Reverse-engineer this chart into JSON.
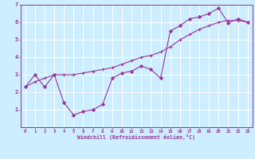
{
  "xlabel": "Windchill (Refroidissement éolien,°C)",
  "background_color": "#cceeff",
  "grid_color": "#ffffff",
  "line_color": "#993399",
  "xlim": [
    -0.5,
    23.5
  ],
  "ylim": [
    0,
    7
  ],
  "xtick_labels": [
    "0",
    "1",
    "2",
    "3",
    "4",
    "5",
    "6",
    "7",
    "8",
    "9",
    "10",
    "11",
    "12",
    "13",
    "14",
    "15",
    "16",
    "17",
    "18",
    "19",
    "20",
    "21",
    "22",
    "23"
  ],
  "xtick_vals": [
    0,
    1,
    2,
    3,
    4,
    5,
    6,
    7,
    8,
    9,
    10,
    11,
    12,
    13,
    14,
    15,
    16,
    17,
    18,
    19,
    20,
    21,
    22,
    23
  ],
  "ytick_vals": [
    1,
    2,
    3,
    4,
    5,
    6,
    7
  ],
  "ytick_labels": [
    "1",
    "2",
    "3",
    "4",
    "5",
    "6",
    "7"
  ],
  "series1_x": [
    0,
    1,
    2,
    3,
    4,
    5,
    6,
    7,
    8,
    9,
    10,
    11,
    12,
    13,
    14,
    15,
    16,
    17,
    18,
    19,
    20,
    21,
    22,
    23
  ],
  "series1_y": [
    2.3,
    3.0,
    2.3,
    3.0,
    1.4,
    0.7,
    0.9,
    1.0,
    1.3,
    2.8,
    3.1,
    3.2,
    3.5,
    3.3,
    2.8,
    5.5,
    5.8,
    6.2,
    6.3,
    6.5,
    6.8,
    5.95,
    6.2,
    6.0
  ],
  "series2_x": [
    0,
    1,
    2,
    3,
    4,
    5,
    6,
    7,
    8,
    9,
    10,
    11,
    12,
    13,
    14,
    15,
    16,
    17,
    18,
    19,
    20,
    21,
    22,
    23
  ],
  "series2_y": [
    2.3,
    2.6,
    2.8,
    3.0,
    3.0,
    3.0,
    3.1,
    3.2,
    3.3,
    3.4,
    3.6,
    3.8,
    4.0,
    4.1,
    4.3,
    4.6,
    5.0,
    5.3,
    5.6,
    5.8,
    6.0,
    6.1,
    6.1,
    6.0
  ]
}
